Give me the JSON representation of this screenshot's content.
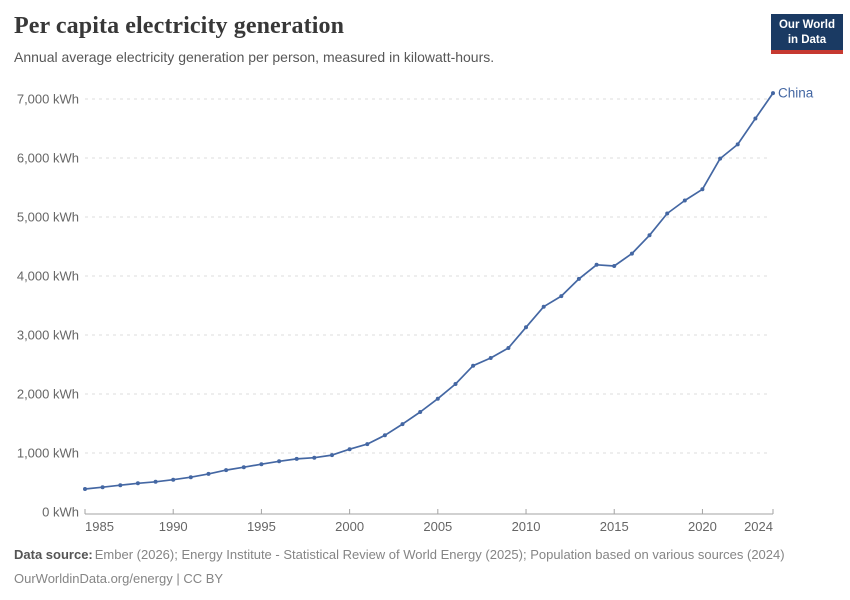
{
  "header": {
    "title": "Per capita electricity generation",
    "subtitle": "Annual average electricity generation per person, measured in kilowatt-hours.",
    "logo": {
      "line1": "Our World",
      "line2": "in Data"
    }
  },
  "chart_data": {
    "type": "line",
    "title": "Per capita electricity generation",
    "unit": "kWh",
    "xlabel": "",
    "ylabel": "",
    "ylim": [
      0,
      7000
    ],
    "yticks": [
      0,
      1000,
      2000,
      3000,
      4000,
      5000,
      6000,
      7000
    ],
    "ytick_suffix": " kWh",
    "xticks": [
      1985,
      1990,
      1995,
      2000,
      2005,
      2010,
      2015,
      2020,
      2024
    ],
    "grid": "dashed-horizontal",
    "legend": "entity-label-right",
    "x": [
      1985,
      1986,
      1987,
      1988,
      1989,
      1990,
      1991,
      1992,
      1993,
      1994,
      1995,
      1996,
      1997,
      1998,
      1999,
      2000,
      2001,
      2002,
      2003,
      2004,
      2005,
      2006,
      2007,
      2008,
      2009,
      2010,
      2011,
      2012,
      2013,
      2014,
      2015,
      2016,
      2017,
      2018,
      2019,
      2020,
      2021,
      2022,
      2023,
      2024
    ],
    "series": [
      {
        "name": "China",
        "color": "#4467a3",
        "values": [
          390,
          420,
          455,
          487,
          512,
          547,
          590,
          645,
          710,
          760,
          810,
          860,
          900,
          920,
          965,
          1065,
          1150,
          1300,
          1490,
          1695,
          1920,
          2170,
          2480,
          2610,
          2780,
          3130,
          3480,
          3660,
          3950,
          4190,
          4170,
          4380,
          4690,
          5060,
          5280,
          5470,
          5990,
          6230,
          6670,
          7100
        ]
      }
    ]
  },
  "footer": {
    "source_label": "Data source:",
    "source_text": "Ember (2026); Energy Institute - Statistical Review of World Energy (2025); Population based on various sources (2024)",
    "link_text": "OurWorldinData.org/energy",
    "divider": " | ",
    "license": "CC BY"
  },
  "colors": {
    "line": "#4467a3",
    "grid": "#dcdcdc",
    "axis": "#a3a3a3",
    "tick_text": "#666666",
    "logo_bg": "#1a3a63",
    "logo_bar": "#c63931"
  }
}
